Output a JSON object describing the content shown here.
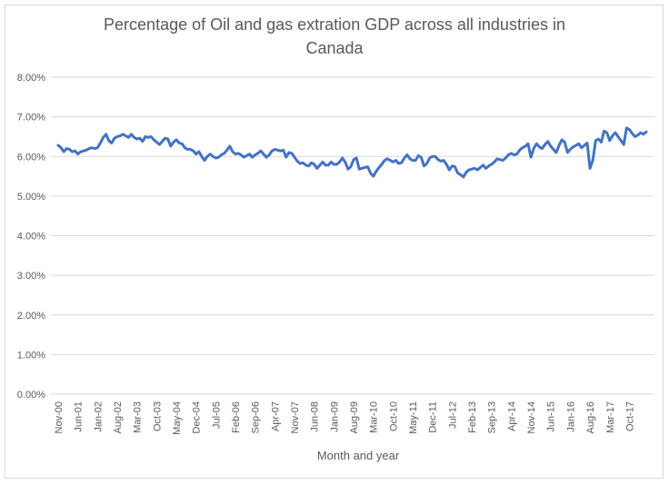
{
  "chart_data": {
    "type": "line",
    "title_line1": "Percentage of Oil and gas extration GDP across all industries in",
    "title_line2": "Canada",
    "xlabel": "Month and year",
    "ylabel": "",
    "ylim": [
      0,
      0.08
    ],
    "y_ticks": [
      "0.00%",
      "1.00%",
      "2.00%",
      "3.00%",
      "4.00%",
      "5.00%",
      "6.00%",
      "7.00%",
      "8.00%"
    ],
    "x_tick_labels": [
      "Nov-00",
      "Jun-01",
      "Jan-02",
      "Aug-02",
      "Mar-03",
      "Oct-03",
      "May-04",
      "Dec-04",
      "Jul-05",
      "Feb-06",
      "Sep-06",
      "Apr-07",
      "Nov-07",
      "Jun-08",
      "Jan-09",
      "Aug-09",
      "Mar-10",
      "Oct-10",
      "May-11",
      "Dec-11",
      "Jul-12",
      "Feb-13",
      "Sep-13",
      "Apr-14",
      "Nov-14",
      "Jun-15",
      "Jan-16",
      "Aug-16",
      "Mar-17",
      "Oct-17"
    ],
    "months_per_tick": 7,
    "grid": true,
    "legend": "none",
    "line_color": "#4472c4",
    "grid_color": "#d9d9d9",
    "series": [
      {
        "values": [
          0.0628,
          0.0622,
          0.0612,
          0.062,
          0.0618,
          0.0612,
          0.0614,
          0.0606,
          0.0612,
          0.0614,
          0.0616,
          0.062,
          0.0622,
          0.062,
          0.0622,
          0.0634,
          0.0648,
          0.0656,
          0.064,
          0.0634,
          0.0646,
          0.065,
          0.0652,
          0.0656,
          0.0652,
          0.0648,
          0.0656,
          0.0648,
          0.0644,
          0.0646,
          0.0638,
          0.065,
          0.0648,
          0.065,
          0.0642,
          0.0636,
          0.063,
          0.0638,
          0.0646,
          0.0644,
          0.0626,
          0.0636,
          0.0642,
          0.0634,
          0.0632,
          0.0622,
          0.0618,
          0.0618,
          0.0614,
          0.0606,
          0.0612,
          0.06,
          0.059,
          0.06,
          0.0606,
          0.06,
          0.0596,
          0.0598,
          0.0604,
          0.0608,
          0.0616,
          0.0626,
          0.0612,
          0.0606,
          0.0608,
          0.0604,
          0.0598,
          0.0602,
          0.0606,
          0.0598,
          0.0604,
          0.0608,
          0.0614,
          0.0606,
          0.0598,
          0.0604,
          0.0614,
          0.0618,
          0.0616,
          0.0614,
          0.0616,
          0.0598,
          0.061,
          0.0608,
          0.0598,
          0.0588,
          0.0582,
          0.0584,
          0.0578,
          0.0576,
          0.0584,
          0.058,
          0.057,
          0.0578,
          0.0586,
          0.0578,
          0.0578,
          0.0586,
          0.058,
          0.058,
          0.0586,
          0.0596,
          0.0586,
          0.0568,
          0.0574,
          0.0592,
          0.0596,
          0.0568,
          0.057,
          0.0572,
          0.0574,
          0.0558,
          0.055,
          0.0562,
          0.0572,
          0.058,
          0.059,
          0.0594,
          0.059,
          0.0586,
          0.059,
          0.0582,
          0.0584,
          0.0596,
          0.0604,
          0.0594,
          0.059,
          0.059,
          0.0602,
          0.0598,
          0.0576,
          0.0582,
          0.0596,
          0.06,
          0.06,
          0.0592,
          0.0588,
          0.059,
          0.058,
          0.0566,
          0.0576,
          0.0574,
          0.0558,
          0.0554,
          0.0548,
          0.056,
          0.0566,
          0.0568,
          0.057,
          0.0566,
          0.0572,
          0.0578,
          0.057,
          0.0576,
          0.058,
          0.0586,
          0.0594,
          0.0592,
          0.059,
          0.0596,
          0.0604,
          0.0608,
          0.0604,
          0.0606,
          0.0616,
          0.0622,
          0.0626,
          0.0632,
          0.0598,
          0.062,
          0.0632,
          0.0624,
          0.062,
          0.063,
          0.0638,
          0.0626,
          0.0618,
          0.061,
          0.0628,
          0.0642,
          0.0636,
          0.061,
          0.0618,
          0.0624,
          0.0628,
          0.0632,
          0.0622,
          0.0628,
          0.0634,
          0.057,
          0.059,
          0.064,
          0.0644,
          0.0636,
          0.0664,
          0.066,
          0.064,
          0.0652,
          0.066,
          0.065,
          0.064,
          0.063,
          0.0672,
          0.0668,
          0.0658,
          0.065,
          0.0654,
          0.066,
          0.0656,
          0.0662
        ]
      }
    ]
  }
}
